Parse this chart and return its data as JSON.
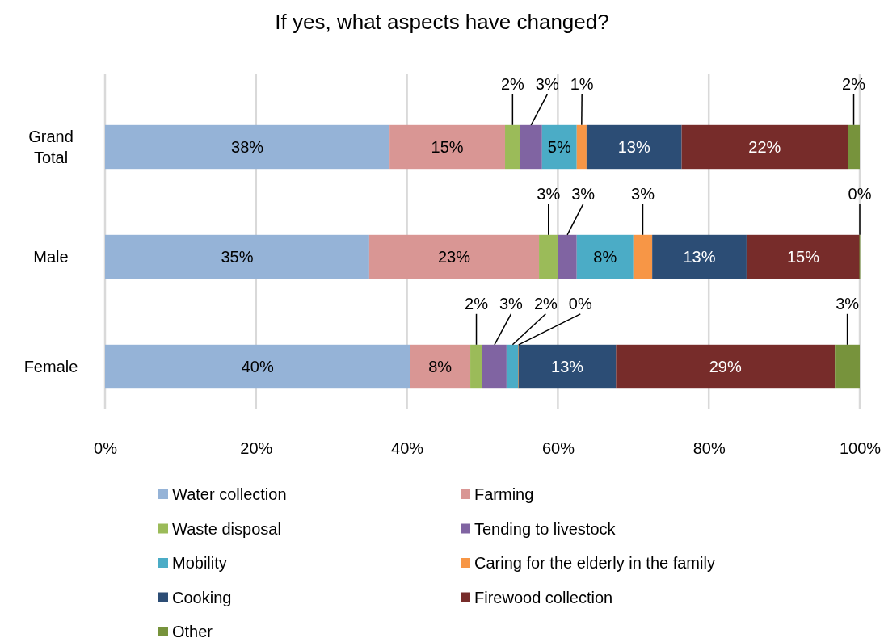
{
  "chart_data": {
    "type": "bar",
    "title": "If yes, what aspects have changed?",
    "orientation": "horizontal",
    "stacked": true,
    "categories": [
      "Grand Total",
      "Male",
      "Female"
    ],
    "xlim": [
      0,
      100
    ],
    "xticks": [
      {
        "value": 0,
        "label": "0%"
      },
      {
        "value": 20,
        "label": "20%"
      },
      {
        "value": 40,
        "label": "40%"
      },
      {
        "value": 60,
        "label": "60%"
      },
      {
        "value": 80,
        "label": "80%"
      },
      {
        "value": 100,
        "label": "100%"
      }
    ],
    "grid": "x",
    "legend": "bottom",
    "series": [
      {
        "name": "Water collection",
        "color": "#95b3d7",
        "values": [
          37.7,
          35,
          40.4
        ],
        "value_labels": [
          "38%",
          "35%",
          "40%"
        ]
      },
      {
        "name": "Farming",
        "color": "#d99694",
        "values": [
          15.3,
          22.5,
          8.0
        ],
        "value_labels": [
          "15%",
          "23%",
          "8%"
        ]
      },
      {
        "name": "Waste disposal",
        "color": "#9bbb59",
        "values": [
          2.0,
          2.5,
          1.6
        ],
        "value_labels": [
          "2%",
          "3%",
          "2%"
        ]
      },
      {
        "name": "Tending to livestock",
        "color": "#8064a2",
        "values": [
          2.9,
          2.5,
          3.2
        ],
        "value_labels": [
          "3%",
          "3%",
          "3%"
        ]
      },
      {
        "name": "Mobility",
        "color": "#4bacc6",
        "values": [
          4.6,
          7.5,
          1.6
        ],
        "value_labels": [
          "5%",
          "8%",
          "2%"
        ]
      },
      {
        "name": "Caring for the elderly in the family",
        "color": "#f79646",
        "values": [
          1.3,
          2.5,
          0
        ],
        "value_labels": [
          "1%",
          "3%",
          "0%"
        ]
      },
      {
        "name": "Cooking",
        "color": "#2c4d75",
        "values": [
          12.6,
          12.5,
          12.9
        ],
        "value_labels": [
          "13%",
          "13%",
          "13%"
        ]
      },
      {
        "name": "Firewood collection",
        "color": "#772c2a",
        "values": [
          22.0,
          15,
          29.0
        ],
        "value_labels": [
          "22%",
          "15%",
          "29%"
        ]
      },
      {
        "name": "Other",
        "color": "#77933c",
        "values": [
          1.6,
          0,
          3.3
        ],
        "value_labels": [
          "2%",
          "0%",
          "3%"
        ]
      }
    ]
  }
}
